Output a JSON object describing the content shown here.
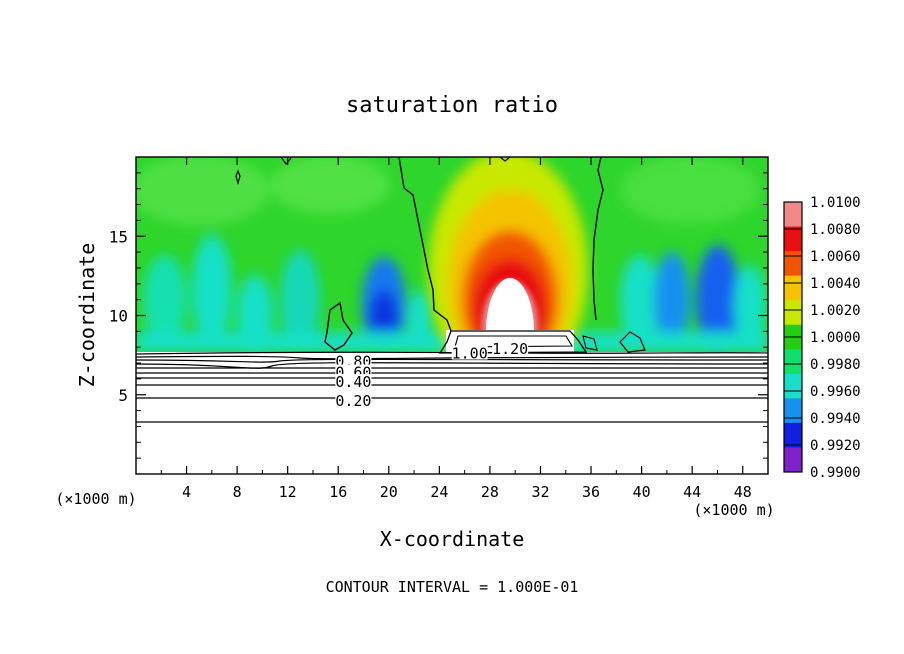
{
  "chart_data": {
    "type": "heatmap",
    "title": "saturation ratio",
    "xlabel": "X-coordinate",
    "ylabel": "Z-coordinate",
    "x_unit": "(×1000 m)",
    "x_unit_right": "(×1000 m)",
    "xlim": [
      0,
      50
    ],
    "ylim": [
      0,
      20
    ],
    "x_ticks": [
      4,
      8,
      12,
      16,
      20,
      24,
      28,
      32,
      36,
      40,
      44,
      48
    ],
    "y_ticks": [
      5,
      10,
      15
    ],
    "footer": "CONTOUR INTERVAL = 1.000E-01",
    "colorbar": {
      "levels": [
        "1.0100",
        "1.0080",
        "1.0060",
        "1.0040",
        "1.0020",
        "1.0000",
        "0.9980",
        "0.9960",
        "0.9940",
        "0.9920",
        "0.9900"
      ],
      "colors": [
        "#f08a8a",
        "#e81010",
        "#f25500",
        "#f5c300",
        "#c8e800",
        "#22d011",
        "#10e06a",
        "#18e0c8",
        "#1890f0",
        "#1020e0",
        "#8020c8"
      ]
    },
    "contour_labels": [
      {
        "text": "0.80",
        "x": 17.2,
        "y": 7.1
      },
      {
        "text": "0.60",
        "x": 17.2,
        "y": 6.4
      },
      {
        "text": "0.40",
        "x": 17.2,
        "y": 5.8
      },
      {
        "text": "0.20",
        "x": 17.2,
        "y": 4.6
      },
      {
        "text": "1.00",
        "x": 26.4,
        "y": 7.6
      },
      {
        "text": "1.20",
        "x": 29.6,
        "y": 7.9
      }
    ],
    "contour_lines_y": [
      7.6,
      7.35,
      7.1,
      6.85,
      6.55,
      6.2,
      5.85,
      5.4,
      4.8,
      3.4
    ],
    "supersaturation_core": {
      "x_center": 29.5,
      "z_top": 12.5,
      "max": 1.01
    }
  }
}
